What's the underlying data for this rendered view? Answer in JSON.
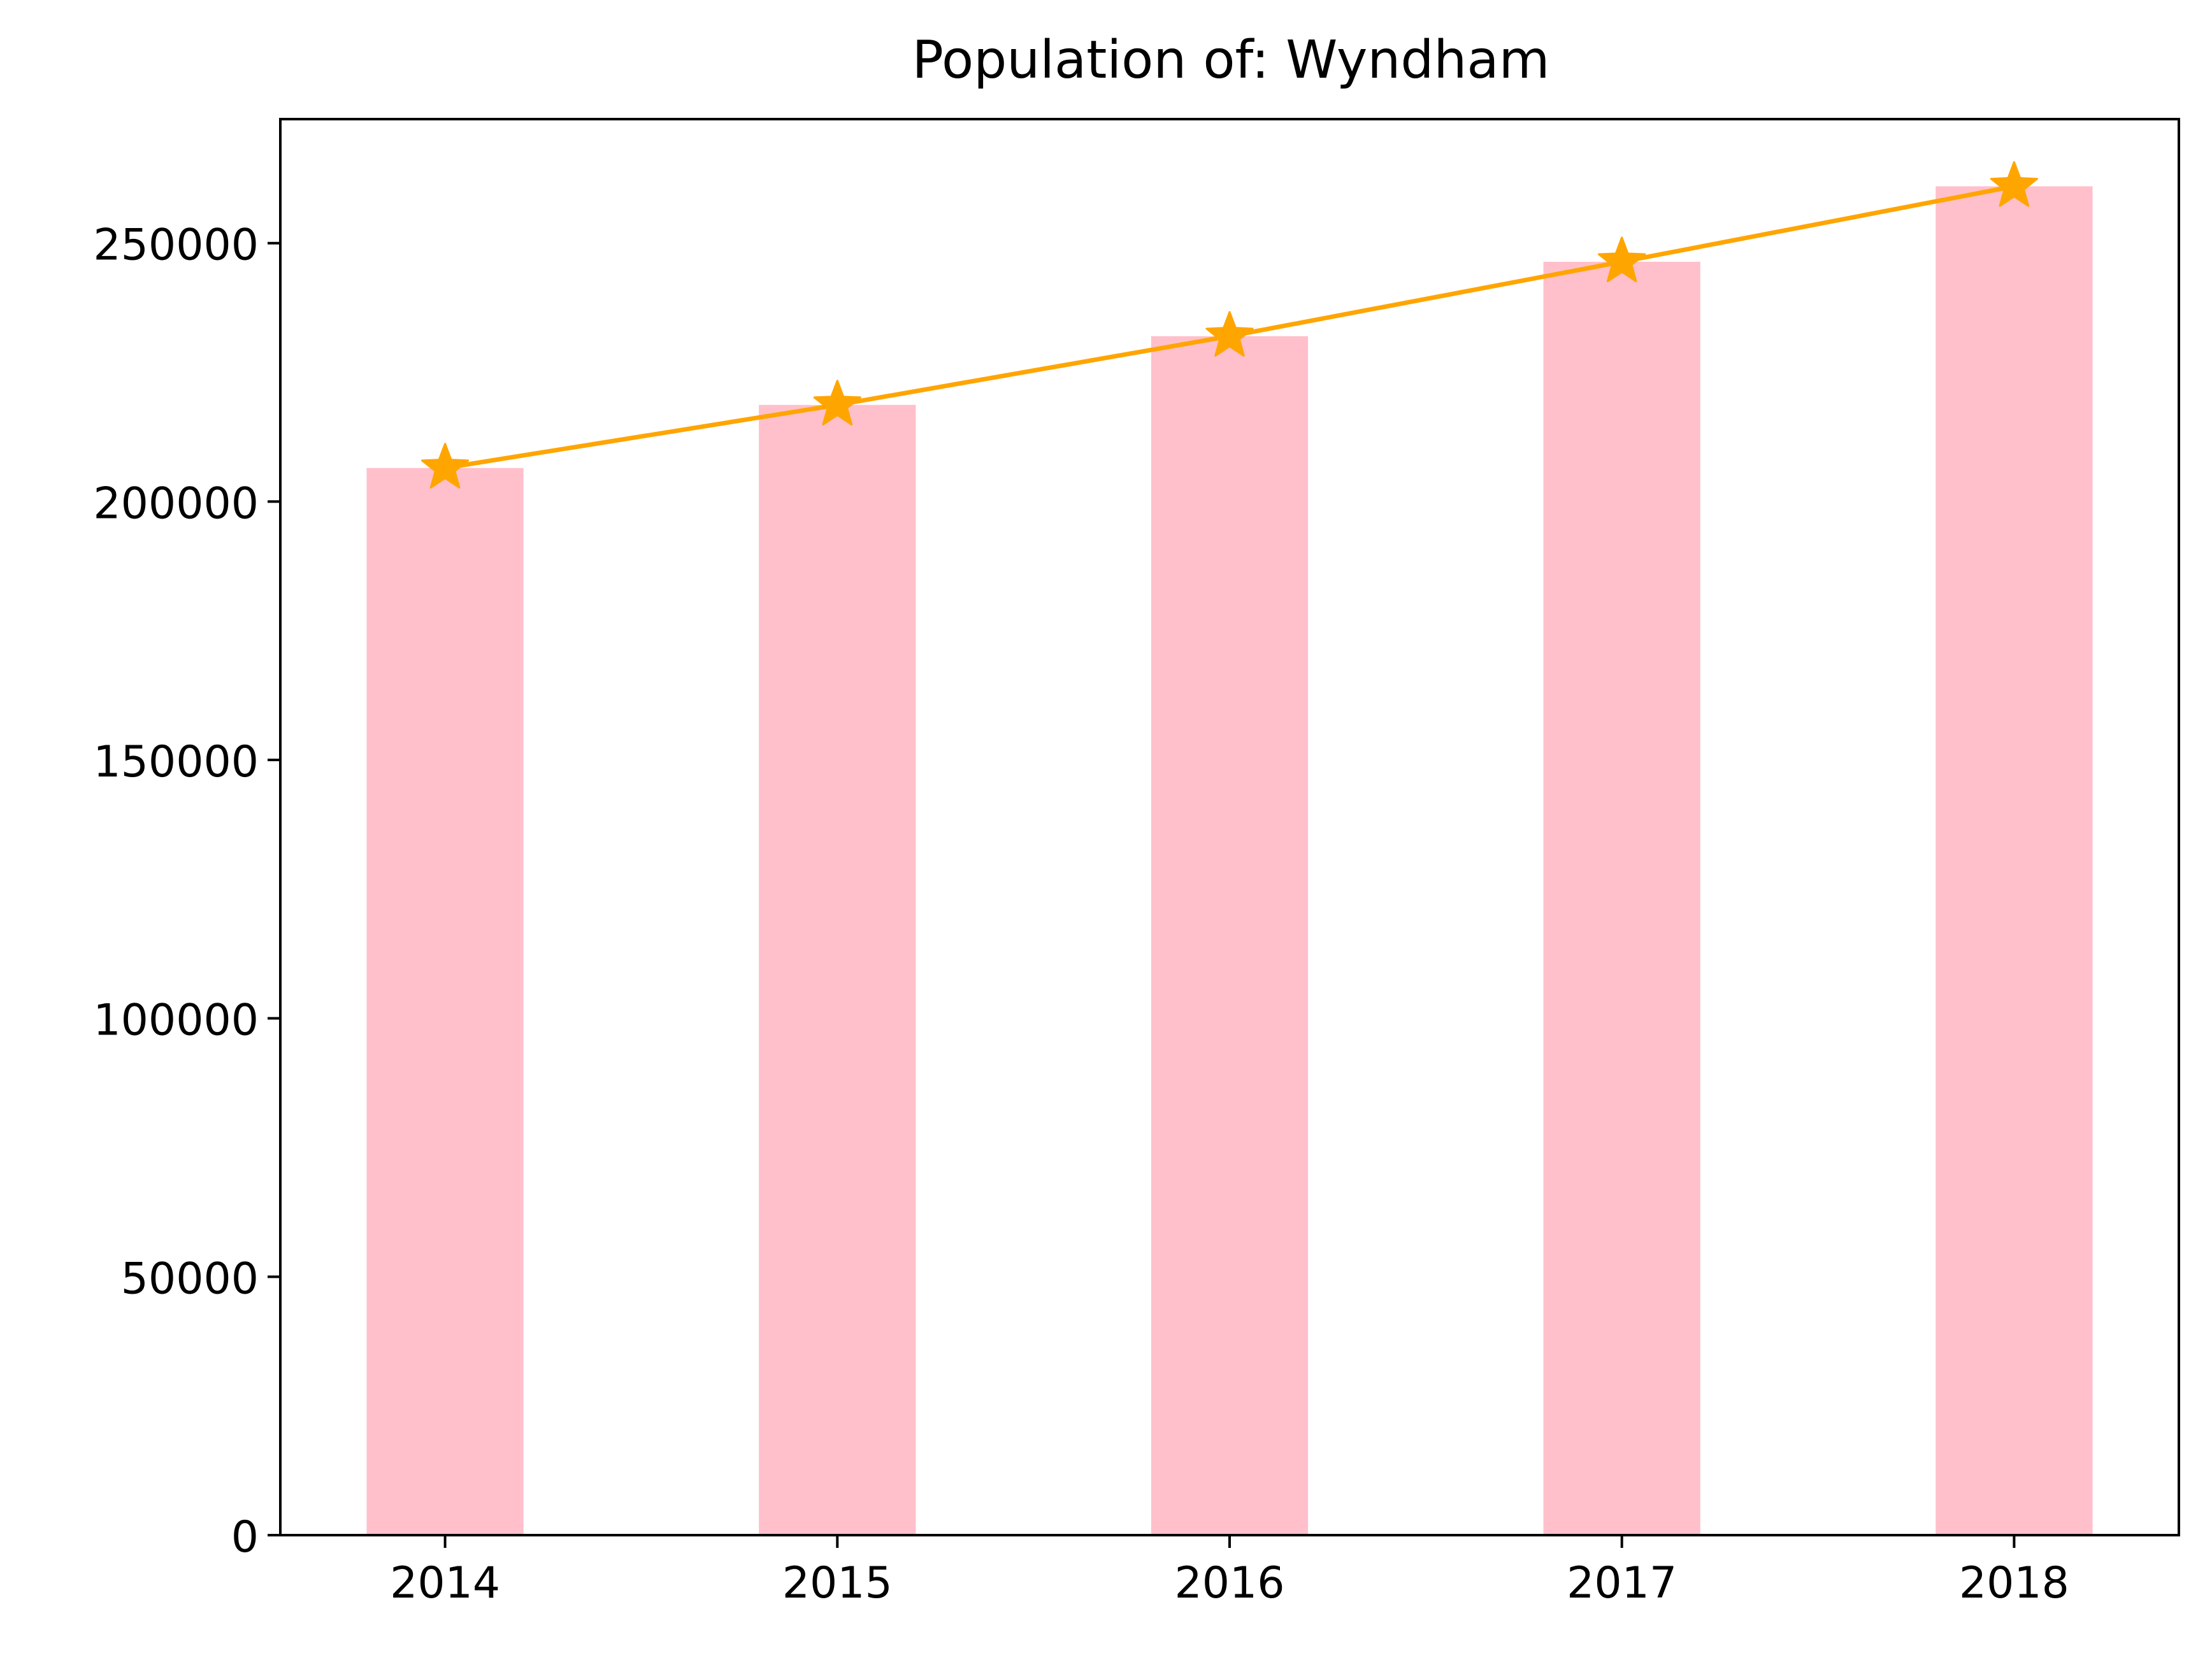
{
  "chart_data": {
    "type": "bar",
    "title": "Population of: Wyndham",
    "xlabel": "",
    "ylabel": "",
    "categories": [
      "2014",
      "2015",
      "2016",
      "2017",
      "2018"
    ],
    "series": [
      {
        "kind": "bar",
        "values": [
          206500,
          218700,
          232000,
          246400,
          261000
        ]
      },
      {
        "kind": "line",
        "marker": "star",
        "values": [
          206500,
          218700,
          232000,
          246400,
          261000
        ]
      }
    ],
    "ylim": [
      0,
      274000
    ],
    "yticks": [
      0,
      50000,
      100000,
      150000,
      200000,
      250000
    ],
    "ytick_labels": [
      "0",
      "50000",
      "100000",
      "150000",
      "200000",
      "250000"
    ],
    "grid": false,
    "legend": "none",
    "colors": {
      "bar": "#ffc0cb",
      "line": "#ffa500",
      "axes": "#000000",
      "background": "#ffffff"
    }
  }
}
